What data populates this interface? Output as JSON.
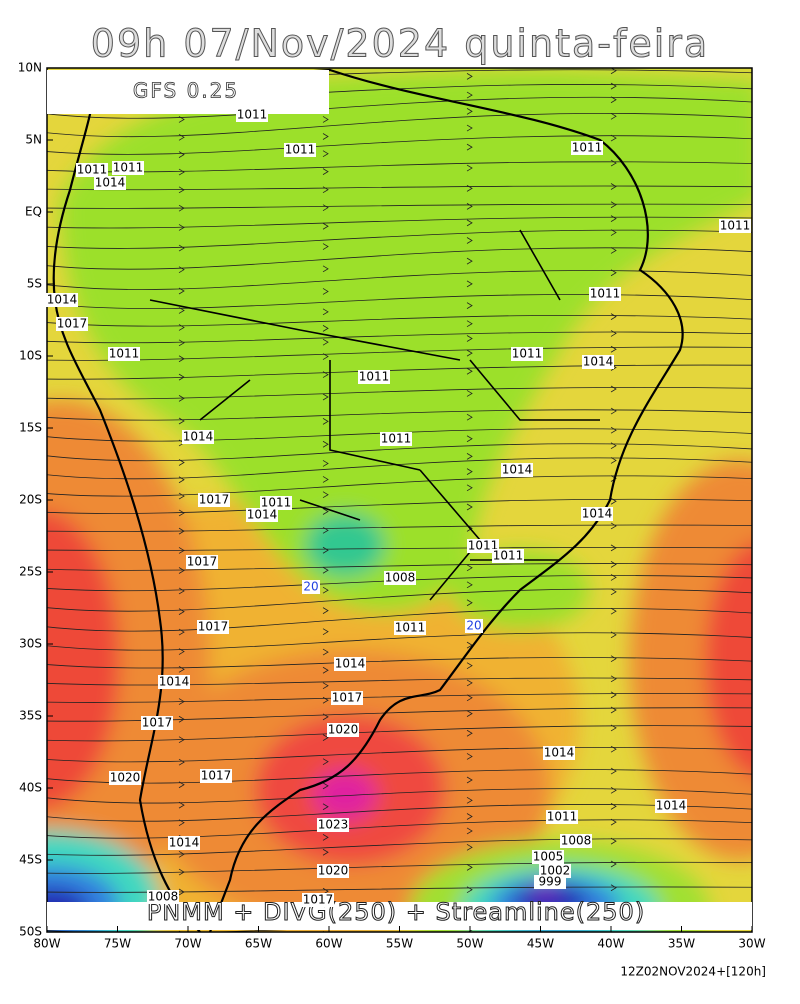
{
  "header": {
    "title": "09h 07/Nov/2024 quinta-feira",
    "model": "GFS 0.25"
  },
  "footer": {
    "fields": "PNMM + DIVG(250) + Streamline(250)",
    "run": "12Z02NOV2024+[120h]"
  },
  "axes": {
    "lat_labels": [
      "10N",
      "5N",
      "EQ",
      "5S",
      "10S",
      "15S",
      "20S",
      "25S",
      "30S",
      "35S",
      "40S",
      "45S",
      "50S"
    ],
    "lon_labels": [
      "80W",
      "75W",
      "70W",
      "65W",
      "60W",
      "55W",
      "50W",
      "45W",
      "40W",
      "35W",
      "30W"
    ]
  },
  "isobar_labels": [
    "1011",
    "1011",
    "1011",
    "1011",
    "1011",
    "1014",
    "1011",
    "1014",
    "1017",
    "1011",
    "1011",
    "1011",
    "1014",
    "1011",
    "1014",
    "1011",
    "1014",
    "1017",
    "1011",
    "1014",
    "1014",
    "1011",
    "1011",
    "1017",
    "1008",
    "1017",
    "1011",
    "1014",
    "1014",
    "1017",
    "1017",
    "1020",
    "1014",
    "1020",
    "1017",
    "1014",
    "1011",
    "1023",
    "1008",
    "1014",
    "1005",
    "1020",
    "1002",
    "999",
    "1008",
    "1017"
  ],
  "divergence_labels": [
    "20",
    "20"
  ]
}
